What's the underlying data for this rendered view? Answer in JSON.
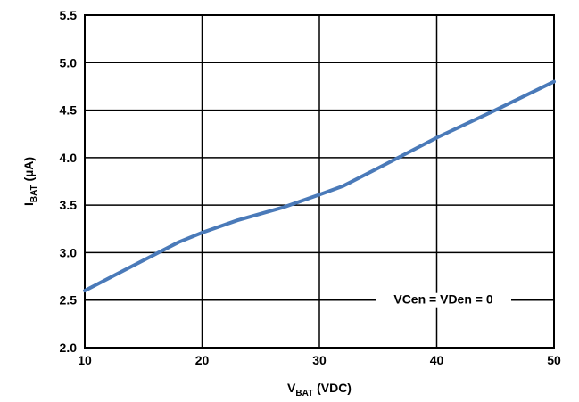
{
  "chart_data": {
    "type": "line",
    "xlabel_main": "V",
    "xlabel_sub": "BAT",
    "xlabel_unit": " (VDC)",
    "ylabel_main": "I",
    "ylabel_sub": "BAT",
    "ylabel_unit": " (µA)",
    "xlim": [
      10,
      50
    ],
    "ylim": [
      2.0,
      5.5
    ],
    "x_ticks": [
      10,
      20,
      30,
      40,
      50
    ],
    "x_tick_labels": [
      "10",
      "20",
      "30",
      "40",
      "50"
    ],
    "y_ticks": [
      2.0,
      2.5,
      3.0,
      3.5,
      4.0,
      4.5,
      5.0,
      5.5
    ],
    "y_tick_labels": [
      "2.0",
      "2.5",
      "3.0",
      "3.5",
      "4.0",
      "4.5",
      "5.0",
      "5.5"
    ],
    "grid": true,
    "annotation": "VCen = VDen = 0",
    "series": [
      {
        "color": "#4a7ab9",
        "x": [
          10,
          15,
          18,
          20,
          23,
          27,
          30,
          32,
          35,
          40,
          45,
          50
        ],
        "y": [
          2.6,
          2.92,
          3.11,
          3.21,
          3.34,
          3.48,
          3.61,
          3.7,
          3.89,
          4.21,
          4.5,
          4.8
        ]
      }
    ]
  }
}
